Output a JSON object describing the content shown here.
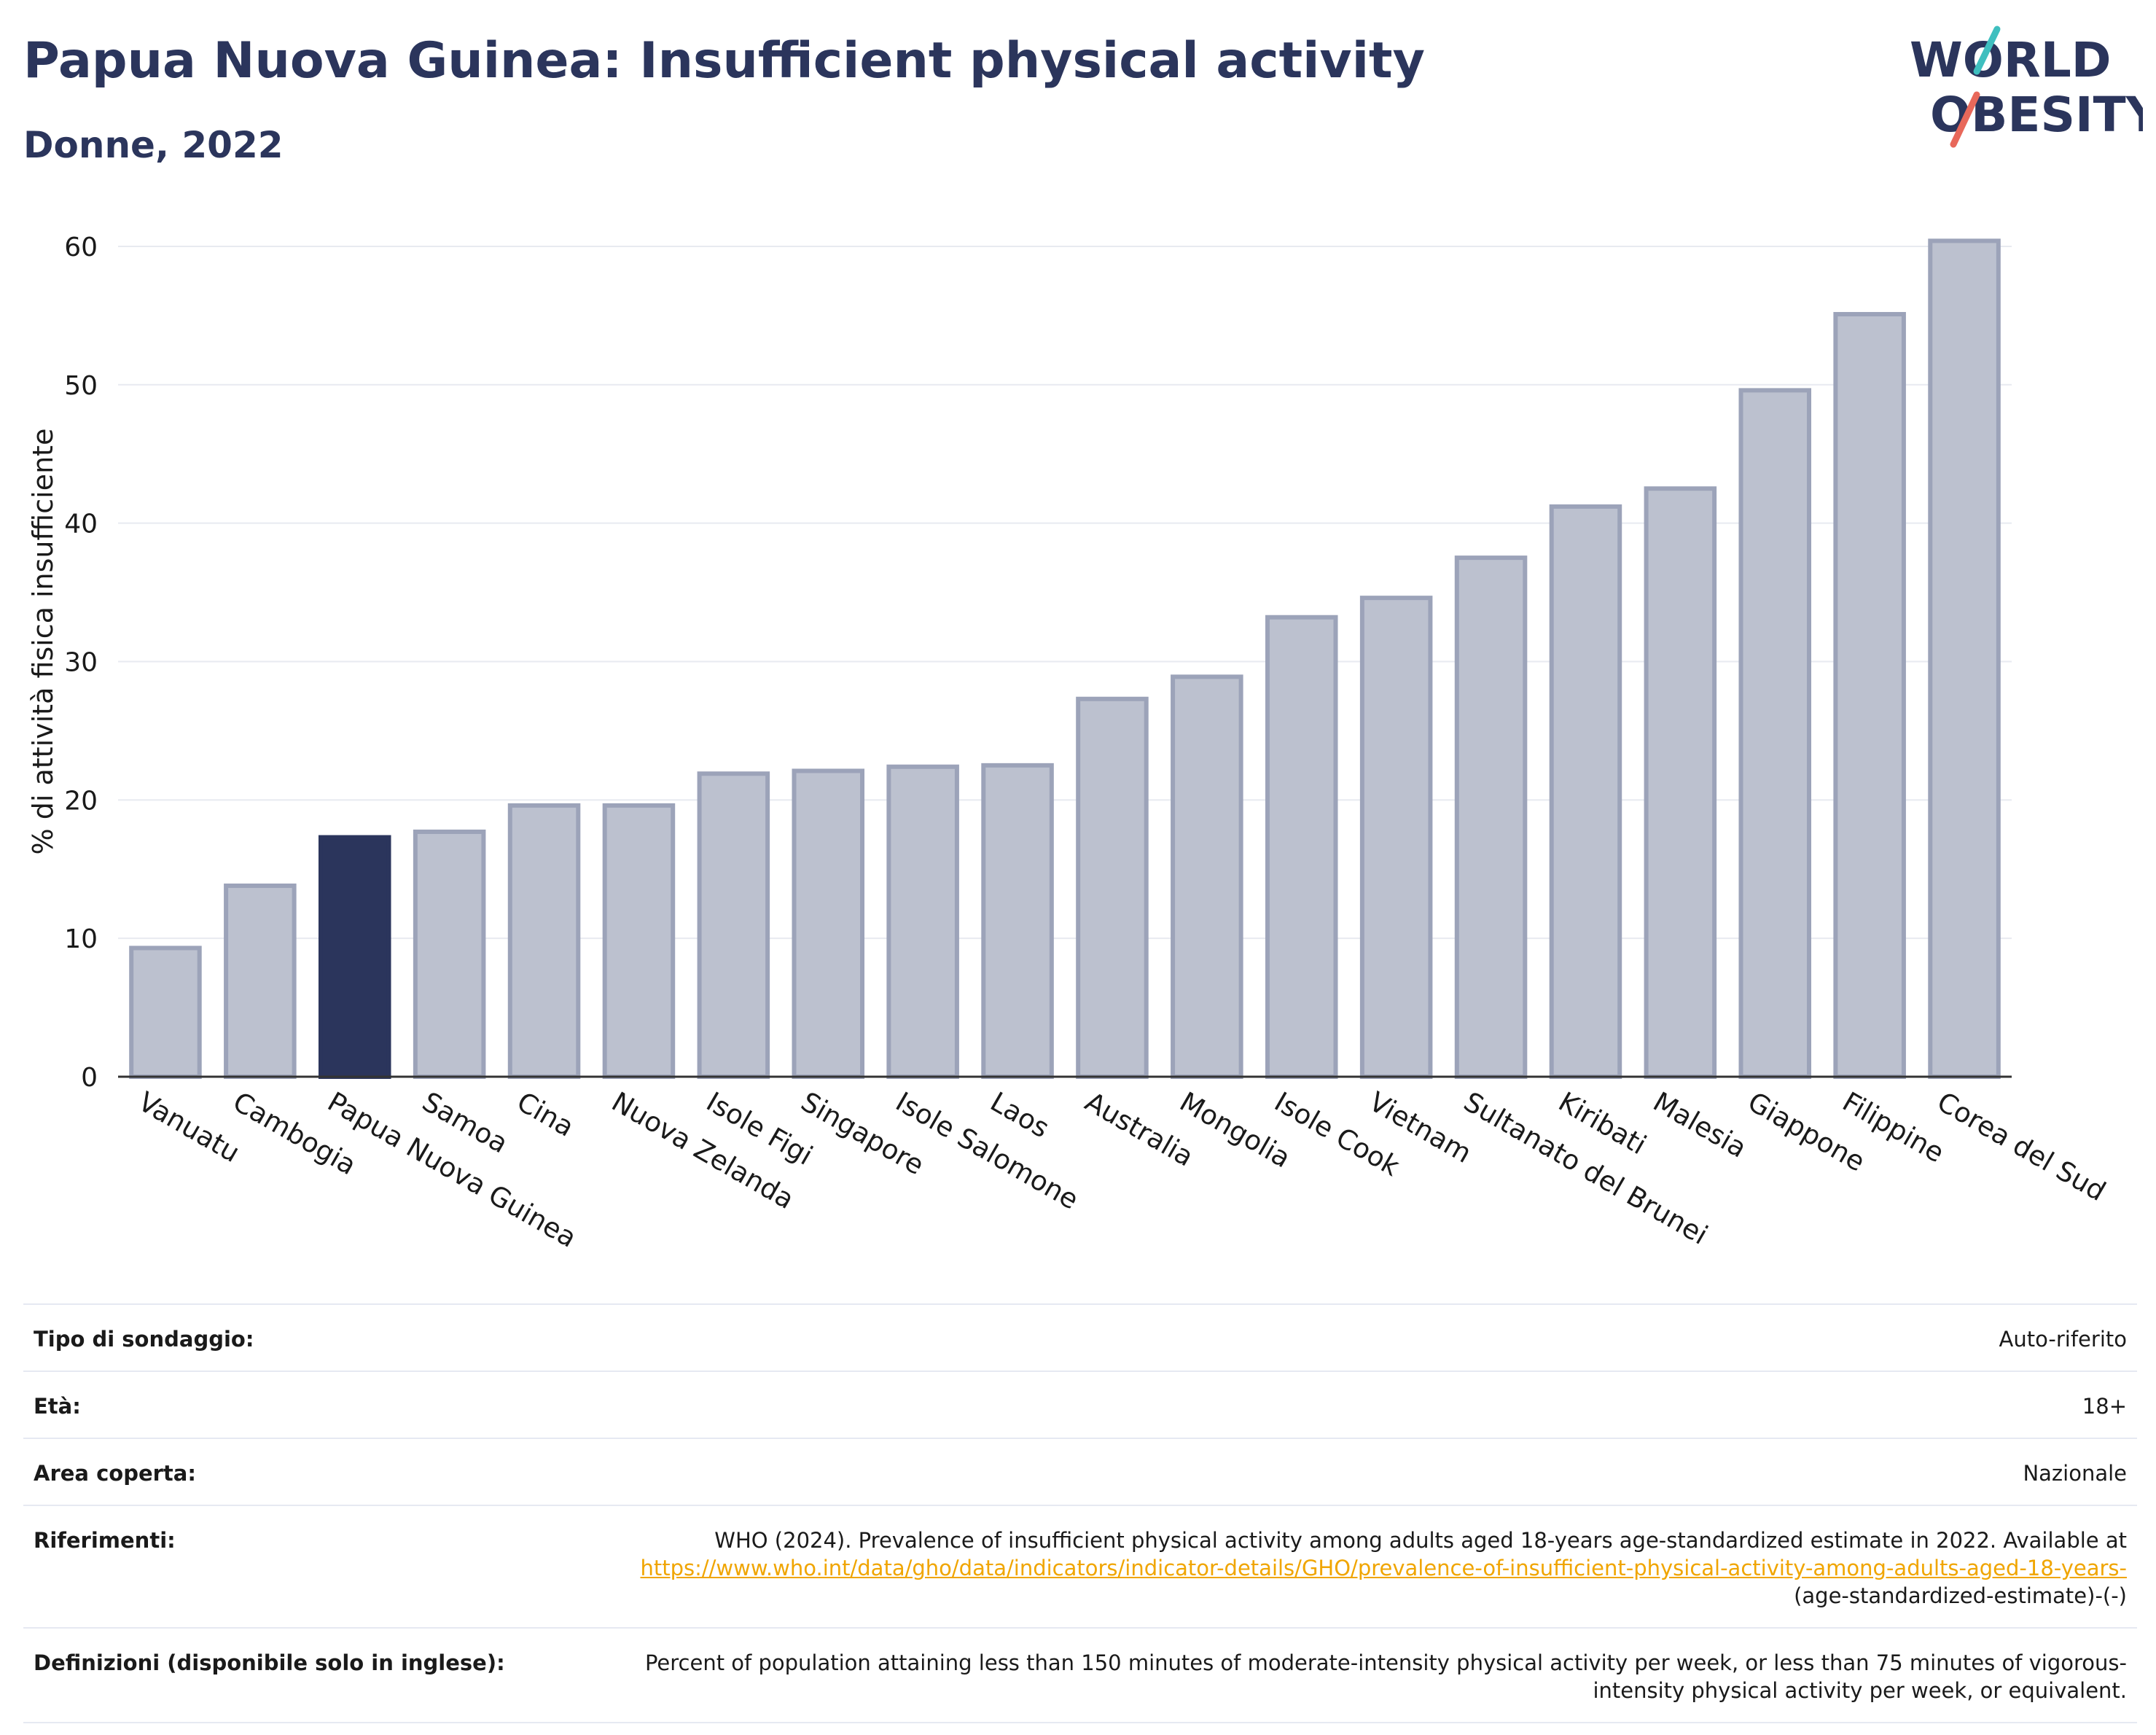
{
  "header": {
    "title": "Papua Nuova Guinea: Insufficient physical activity",
    "subtitle": "Donne, 2022"
  },
  "logo": {
    "line1": "WORLD",
    "line2": "OBESITY",
    "accent_teal": "#3fbfbf",
    "accent_coral": "#e8685a"
  },
  "colors": {
    "highlight_bar": "#2b355c",
    "other_bar_fill": "#bcc1cf",
    "other_bar_stroke": "#9ca3b9",
    "gridline": "#e8eaf0",
    "axis": "#333333"
  },
  "chart_data": {
    "type": "bar",
    "ylabel": "% di attività fisica insufficiente",
    "xlabel": "",
    "ylim": [
      0,
      62
    ],
    "yticks": [
      0,
      10,
      20,
      30,
      40,
      50,
      60
    ],
    "grid": true,
    "highlight": "Papua Nuova Guinea",
    "categories": [
      "Vanuatu",
      "Cambogia",
      "Papua Nuova Guinea",
      "Samoa",
      "Cina",
      "Nuova Zelanda",
      "Isole Figi",
      "Singapore",
      "Isole Salomone",
      "Laos",
      "Australia",
      "Mongolia",
      "Isole Cook",
      "Vietnam",
      "Sultanato del Brunei",
      "Kiribati",
      "Malesia",
      "Giappone",
      "Filippine",
      "Corea del Sud"
    ],
    "values": [
      9.3,
      13.8,
      17.3,
      17.7,
      19.6,
      19.6,
      21.9,
      22.1,
      22.4,
      22.5,
      27.3,
      28.9,
      33.2,
      34.6,
      37.5,
      41.2,
      42.5,
      49.6,
      55.1,
      60.4
    ]
  },
  "info": [
    {
      "label": "Tipo di sondaggio:",
      "value": "Auto-riferito"
    },
    {
      "label": "Età:",
      "value": "18+"
    },
    {
      "label": "Area coperta:",
      "value": "Nazionale"
    },
    {
      "label": "Riferimenti:",
      "value": "WHO (2024). Prevalence of insufficient physical activity among adults aged 18-years age-standardized estimate in 2022. Available at",
      "link": "https://www.who.int/data/gho/data/indicators/indicator-details/GHO/prevalence-of-insufficient-physical-activity-among-adults-aged-18-years-",
      "suffix": "(age-standardized-estimate)-(-)"
    },
    {
      "label": "Definizioni (disponibile solo in inglese):",
      "value": "Percent of population attaining less than 150 minutes of moderate-intensity physical activity per week, or less than 75 minutes of vigorous-intensity physical activity per week, or equivalent."
    }
  ]
}
